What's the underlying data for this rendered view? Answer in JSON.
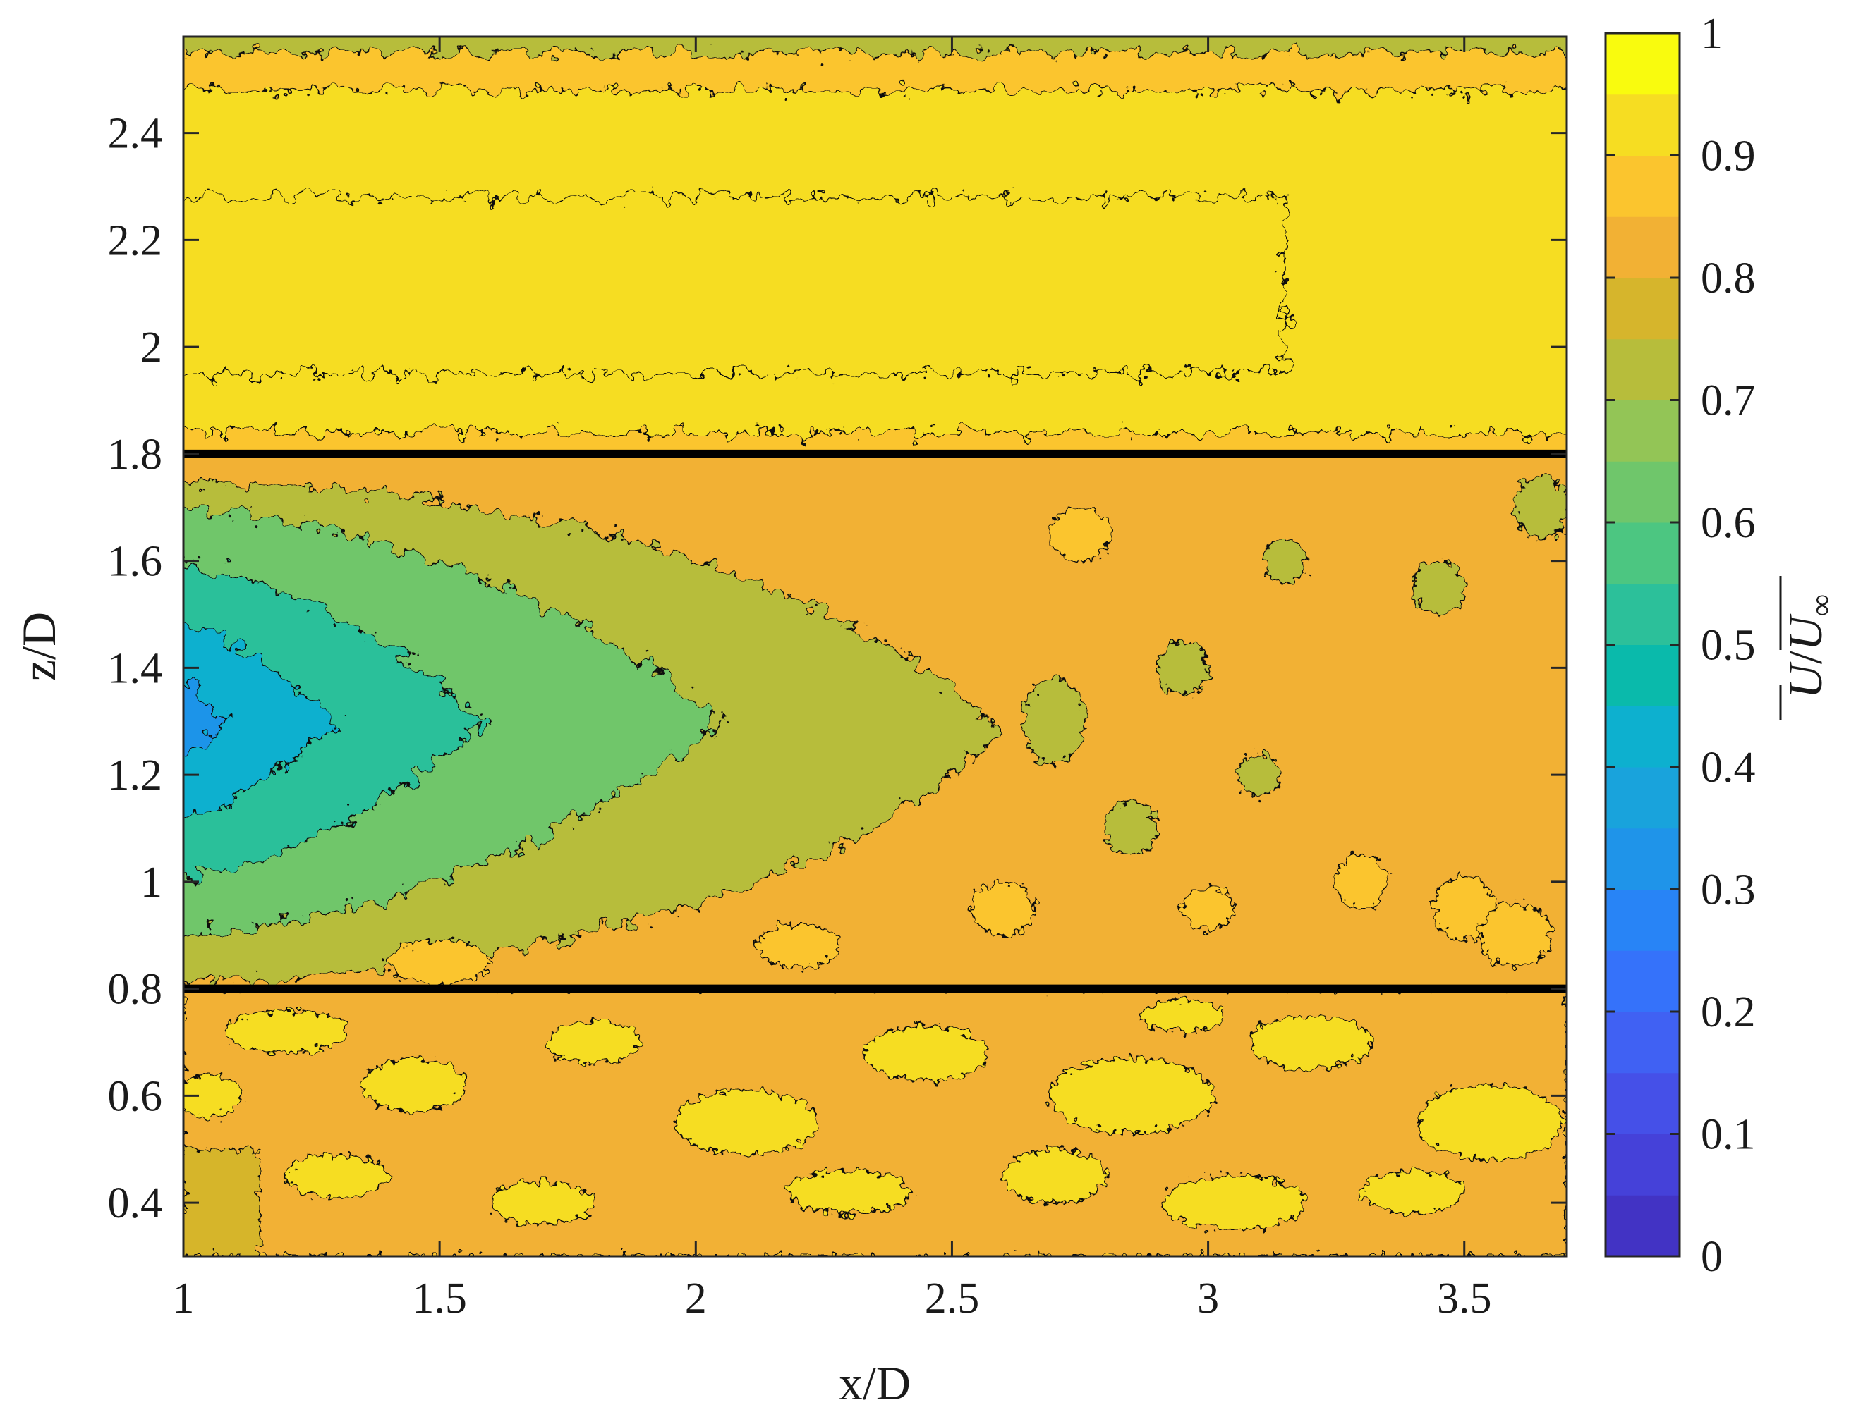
{
  "chart_data": {
    "type": "heatmap",
    "title": "",
    "xlabel": "x/D",
    "ylabel": "z/D",
    "colorbar_label": "U/U∞",
    "colorbar_label_parts": [
      "U",
      "/",
      "U",
      "∞"
    ],
    "xlim": [
      1,
      3.7
    ],
    "ylim": [
      0.3,
      2.58
    ],
    "x_ticks": [
      1,
      1.5,
      2,
      2.5,
      3,
      3.5
    ],
    "x_tick_labels": [
      "1",
      "1.5",
      "2",
      "2.5",
      "3",
      "3.5"
    ],
    "y_ticks": [
      0.4,
      0.6,
      0.8,
      1,
      1.2,
      1.4,
      1.6,
      1.8,
      2,
      2.2,
      2.4
    ],
    "y_tick_labels": [
      "0.4",
      "0.6",
      "0.8",
      "1",
      "1.2",
      "1.4",
      "1.6",
      "1.8",
      "2",
      "2.2",
      "2.4"
    ],
    "colorbar": {
      "range": [
        0,
        1
      ],
      "ticks": [
        0,
        0.1,
        0.2,
        0.3,
        0.4,
        0.5,
        0.6,
        0.7,
        0.8,
        0.9,
        1
      ],
      "tick_labels": [
        "0",
        "0.1",
        "0.2",
        "0.3",
        "0.4",
        "0.5",
        "0.6",
        "0.7",
        "0.8",
        "0.9",
        "1"
      ],
      "levels": 20,
      "colors": [
        "#3e26a8",
        "#4233c4",
        "#4541d9",
        "#4550e8",
        "#4061f3",
        "#3572fa",
        "#2884f6",
        "#1f94e9",
        "#19a3dc",
        "#0db0cf",
        "#0abaab",
        "#2cc09a",
        "#4cc681",
        "#6fc66b",
        "#93c556",
        "#b7bd3b",
        "#d6b52c",
        "#f2b134",
        "#fbc52e",
        "#f6dd22",
        "#f9fb0e"
      ]
    },
    "reference_lines": [
      {
        "z": 0.8,
        "color": "#000000"
      },
      {
        "z": 1.8,
        "color": "#000000"
      }
    ],
    "regions": [
      {
        "x_range": [
          1,
          3.7
        ],
        "z_range": [
          0.3,
          0.8
        ],
        "value_range": [
          0.85,
          0.95
        ],
        "description": "near-freestream flow below the lower line"
      },
      {
        "x_range": [
          1,
          2.6
        ],
        "z_range": [
          0.8,
          1.8
        ],
        "value_range": [
          0.3,
          0.85
        ],
        "description": "wake deficit region, minimum about 0.3 near x/D = 1, z/D = 1.3"
      },
      {
        "x_range": [
          1,
          3.7
        ],
        "z_range": [
          1.8,
          2.5
        ],
        "value_range": [
          0.9,
          0.97
        ],
        "description": "high-speed band above the upper line"
      },
      {
        "x_range": [
          1,
          3.7
        ],
        "z_range": [
          2.5,
          2.58
        ],
        "value_range": [
          0.75,
          0.85
        ],
        "description": "thin lower-velocity band at the top"
      }
    ]
  }
}
